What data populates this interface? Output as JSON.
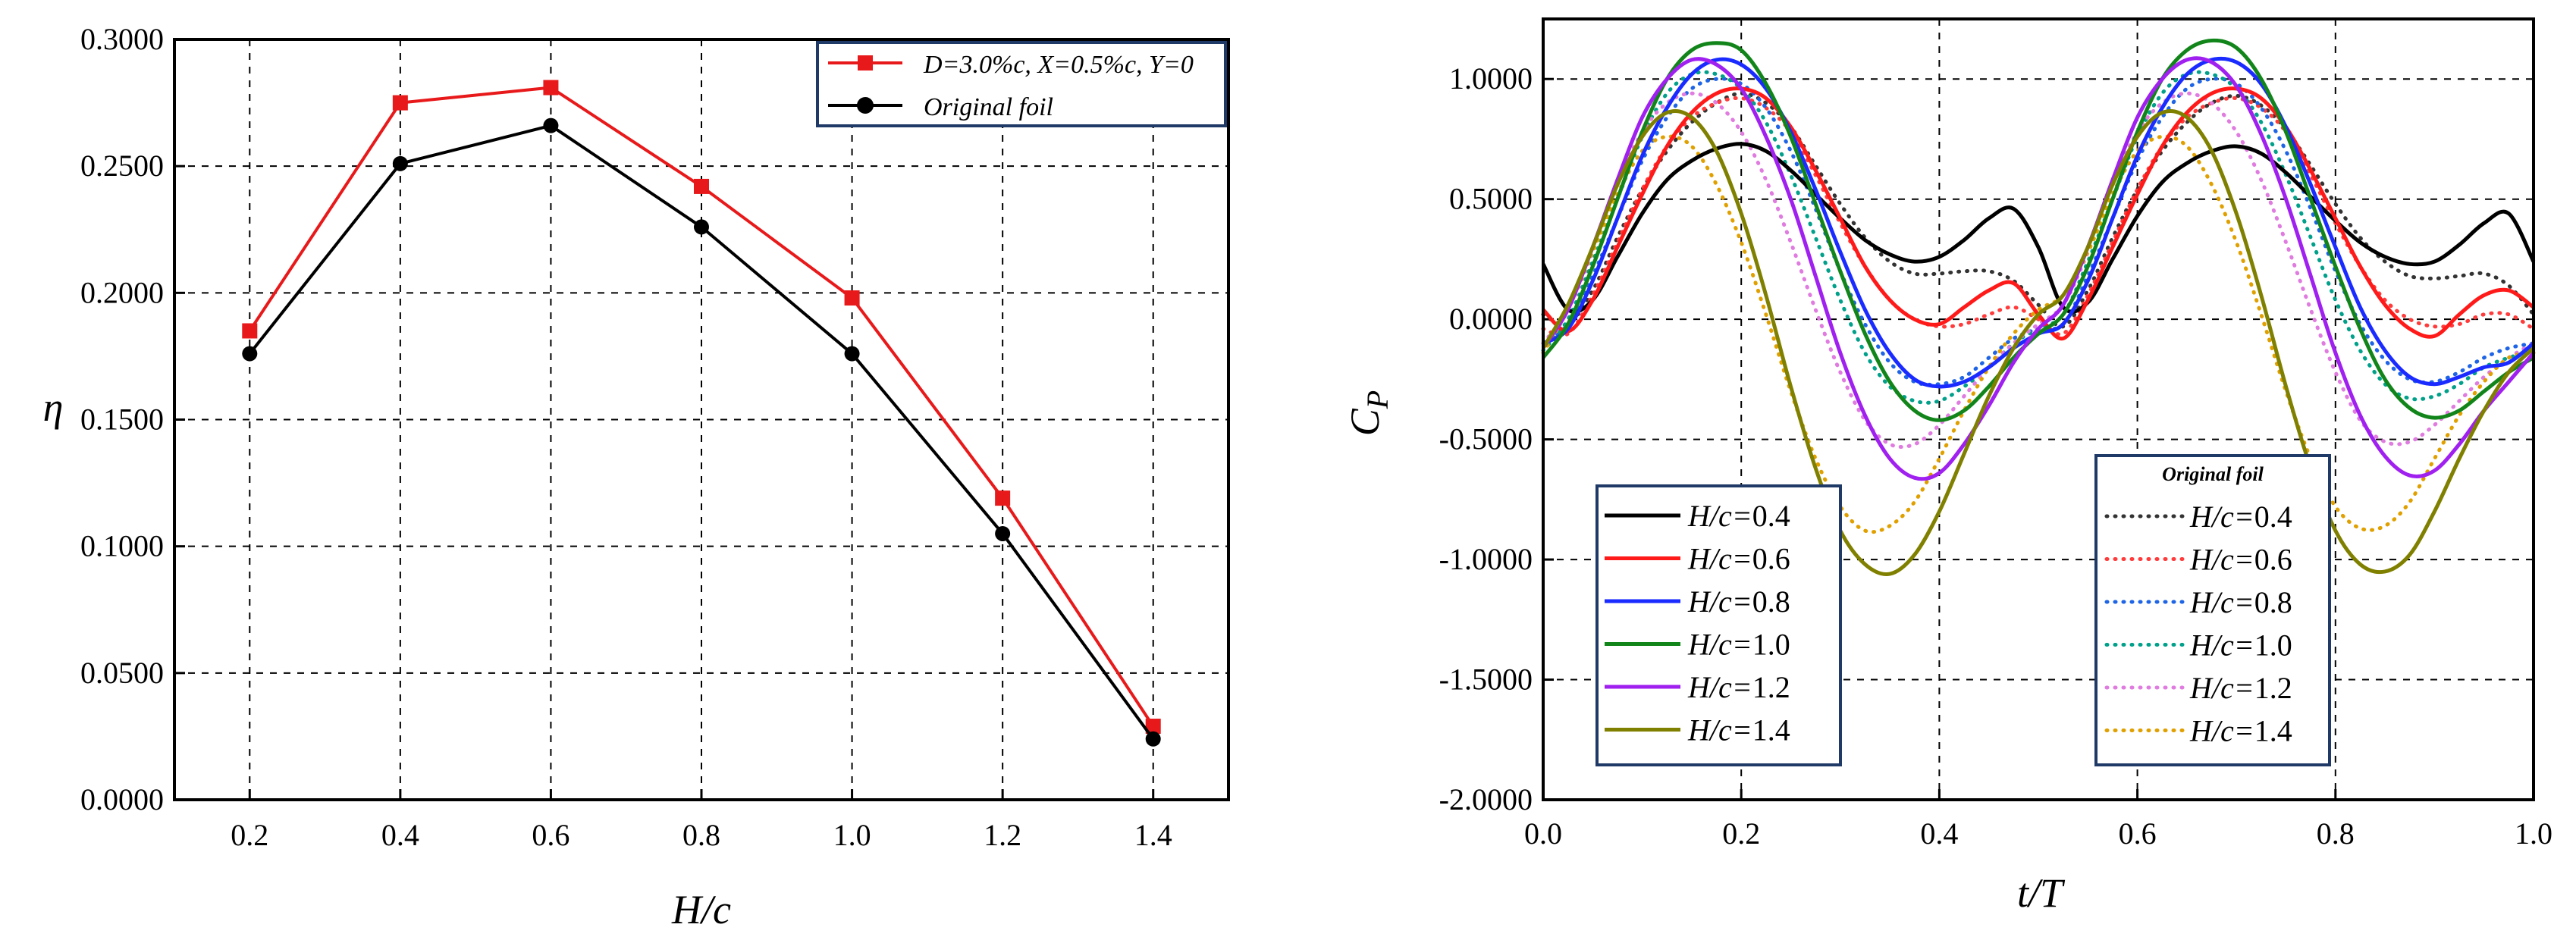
{
  "chart_data": [
    {
      "type": "line",
      "title": "",
      "xlabel": "H/c",
      "ylabel": "η",
      "xlim": [
        0.1,
        1.5
      ],
      "ylim": [
        0.0,
        0.3
      ],
      "xticks": [
        "0.2",
        "0.4",
        "0.6",
        "0.8",
        "1.0",
        "1.2",
        "1.4"
      ],
      "yticks": [
        "0.0000",
        "0.0500",
        "0.1000",
        "0.1500",
        "0.2000",
        "0.2500",
        "0.3000"
      ],
      "legend_position": "top-right",
      "grid": true,
      "x": [
        0.2,
        0.4,
        0.6,
        0.8,
        1.0,
        1.2,
        1.4
      ],
      "series": [
        {
          "name": "D=3.0%c, X=0.5%c, Y=0",
          "color": "#e8191a",
          "marker": "square",
          "values": [
            0.185,
            0.275,
            0.281,
            0.242,
            0.198,
            0.119,
            0.029
          ]
        },
        {
          "name": "Original foil",
          "color": "#000000",
          "marker": "circle",
          "values": [
            0.176,
            0.251,
            0.266,
            0.226,
            0.176,
            0.105,
            0.024
          ]
        }
      ]
    },
    {
      "type": "line",
      "title": "",
      "xlabel": "t/T",
      "ylabel": "C_P",
      "ylabel_main": "C",
      "ylabel_sub": "P",
      "xlim": [
        0.0,
        1.0
      ],
      "ylim": [
        -2.0,
        1.25
      ],
      "xticks": [
        "0.0",
        "0.2",
        "0.4",
        "0.6",
        "0.8",
        "1.0"
      ],
      "yticks": [
        "-2.0000",
        "-1.5000",
        "-1.0000",
        "-0.5000",
        "0.0000",
        "0.5000",
        "1.0000"
      ],
      "grid": true,
      "legend_left_position": "bottom-left",
      "legend_right_position": "bottom-right",
      "legend_right_title": "Original foil",
      "label_prefix": "H/c=",
      "x": [
        0.0,
        0.025,
        0.05,
        0.075,
        0.1,
        0.125,
        0.15,
        0.175,
        0.2,
        0.225,
        0.25,
        0.275,
        0.3,
        0.325,
        0.35,
        0.375,
        0.4,
        0.425,
        0.45,
        0.475,
        0.5,
        0.525,
        0.55,
        0.575,
        0.6,
        0.625,
        0.65,
        0.675,
        0.7,
        0.725,
        0.75,
        0.775,
        0.8,
        0.825,
        0.85,
        0.875,
        0.9,
        0.925,
        0.95,
        0.975,
        1.0
      ],
      "series": [
        {
          "name": "H/c=0.4",
          "hc": "0.4",
          "color": "#000000",
          "dashed": false,
          "values": [
            0.23,
            0.04,
            0.08,
            0.26,
            0.44,
            0.58,
            0.66,
            0.71,
            0.73,
            0.7,
            0.62,
            0.52,
            0.42,
            0.33,
            0.27,
            0.24,
            0.26,
            0.33,
            0.42,
            0.46,
            0.3,
            0.05,
            0.07,
            0.25,
            0.43,
            0.57,
            0.65,
            0.7,
            0.72,
            0.69,
            0.61,
            0.51,
            0.41,
            0.32,
            0.26,
            0.23,
            0.24,
            0.31,
            0.4,
            0.44,
            0.24
          ]
        },
        {
          "name": "H/c=0.6",
          "hc": "0.6",
          "color": "#ff1a1a",
          "dashed": false,
          "values": [
            0.04,
            -0.05,
            0.08,
            0.3,
            0.52,
            0.72,
            0.86,
            0.94,
            0.96,
            0.92,
            0.8,
            0.62,
            0.42,
            0.22,
            0.08,
            0.0,
            -0.02,
            0.05,
            0.12,
            0.15,
            0.02,
            -0.08,
            0.08,
            0.3,
            0.52,
            0.72,
            0.86,
            0.94,
            0.96,
            0.92,
            0.8,
            0.62,
            0.42,
            0.22,
            0.06,
            -0.04,
            -0.07,
            0.02,
            0.1,
            0.12,
            0.05
          ]
        },
        {
          "name": "H/c=0.8",
          "hc": "0.8",
          "color": "#1a2bff",
          "dashed": false,
          "values": [
            -0.1,
            -0.04,
            0.16,
            0.42,
            0.68,
            0.88,
            1.02,
            1.08,
            1.06,
            0.96,
            0.78,
            0.54,
            0.28,
            0.04,
            -0.14,
            -0.25,
            -0.28,
            -0.26,
            -0.2,
            -0.12,
            -0.06,
            -0.02,
            0.16,
            0.42,
            0.68,
            0.88,
            1.02,
            1.08,
            1.07,
            0.98,
            0.8,
            0.56,
            0.3,
            0.05,
            -0.13,
            -0.24,
            -0.27,
            -0.24,
            -0.2,
            -0.18,
            -0.1
          ]
        },
        {
          "name": "H/c=1.0",
          "hc": "1.0",
          "color": "#12851a",
          "dashed": false,
          "values": [
            -0.16,
            -0.02,
            0.22,
            0.5,
            0.78,
            1.0,
            1.12,
            1.15,
            1.12,
            0.98,
            0.76,
            0.48,
            0.2,
            -0.06,
            -0.26,
            -0.38,
            -0.42,
            -0.38,
            -0.28,
            -0.16,
            -0.06,
            0.02,
            0.22,
            0.5,
            0.78,
            1.0,
            1.12,
            1.16,
            1.13,
            1.0,
            0.78,
            0.5,
            0.22,
            -0.04,
            -0.25,
            -0.37,
            -0.41,
            -0.38,
            -0.3,
            -0.22,
            -0.16
          ]
        },
        {
          "name": "H/c=1.2",
          "hc": "1.2",
          "color": "#a020f0",
          "dashed": false,
          "values": [
            -0.12,
            0.04,
            0.3,
            0.58,
            0.84,
            1.0,
            1.08,
            1.06,
            0.96,
            0.76,
            0.5,
            0.18,
            -0.14,
            -0.4,
            -0.58,
            -0.66,
            -0.64,
            -0.52,
            -0.36,
            -0.18,
            -0.04,
            0.06,
            0.3,
            0.58,
            0.84,
            1.0,
            1.08,
            1.07,
            0.97,
            0.77,
            0.5,
            0.18,
            -0.14,
            -0.4,
            -0.57,
            -0.65,
            -0.63,
            -0.52,
            -0.38,
            -0.26,
            -0.14
          ]
        },
        {
          "name": "H/c=1.4",
          "hc": "1.4",
          "color": "#808000",
          "dashed": false,
          "values": [
            -0.12,
            0.06,
            0.3,
            0.56,
            0.76,
            0.86,
            0.84,
            0.7,
            0.44,
            0.1,
            -0.28,
            -0.62,
            -0.88,
            -1.02,
            -1.06,
            -0.98,
            -0.8,
            -0.56,
            -0.32,
            -0.12,
            0.02,
            0.1,
            0.3,
            0.56,
            0.76,
            0.86,
            0.84,
            0.7,
            0.44,
            0.1,
            -0.28,
            -0.62,
            -0.88,
            -1.02,
            -1.05,
            -0.98,
            -0.8,
            -0.58,
            -0.38,
            -0.22,
            -0.12
          ]
        },
        {
          "name": "H/c=0.4",
          "hc": "0.4",
          "color": "#333333",
          "dashed": true,
          "values": [
            0.02,
            -0.02,
            0.12,
            0.34,
            0.54,
            0.7,
            0.82,
            0.9,
            0.94,
            0.9,
            0.8,
            0.64,
            0.48,
            0.34,
            0.24,
            0.19,
            0.19,
            0.2,
            0.2,
            0.16,
            0.06,
            -0.03,
            0.12,
            0.34,
            0.54,
            0.7,
            0.82,
            0.9,
            0.93,
            0.89,
            0.79,
            0.64,
            0.48,
            0.34,
            0.24,
            0.18,
            0.17,
            0.18,
            0.19,
            0.14,
            0.02
          ]
        },
        {
          "name": "H/c=0.6",
          "hc": "0.6",
          "color": "#ff3b3b",
          "dashed": true,
          "values": [
            -0.04,
            -0.06,
            0.1,
            0.32,
            0.54,
            0.72,
            0.84,
            0.9,
            0.92,
            0.88,
            0.78,
            0.6,
            0.4,
            0.22,
            0.08,
            0.0,
            -0.03,
            -0.02,
            0.02,
            0.05,
            0.0,
            -0.06,
            0.1,
            0.32,
            0.54,
            0.72,
            0.84,
            0.9,
            0.92,
            0.88,
            0.78,
            0.6,
            0.4,
            0.22,
            0.08,
            0.0,
            -0.03,
            -0.02,
            0.02,
            0.02,
            -0.04
          ]
        },
        {
          "name": "H/c=0.8",
          "hc": "0.8",
          "color": "#1e64e6",
          "dashed": true,
          "values": [
            -0.1,
            -0.02,
            0.18,
            0.42,
            0.66,
            0.84,
            0.96,
            1.0,
            0.98,
            0.88,
            0.7,
            0.46,
            0.2,
            -0.02,
            -0.18,
            -0.26,
            -0.27,
            -0.24,
            -0.16,
            -0.08,
            -0.04,
            -0.02,
            0.18,
            0.42,
            0.66,
            0.84,
            0.96,
            1.0,
            0.98,
            0.88,
            0.7,
            0.46,
            0.2,
            -0.02,
            -0.17,
            -0.25,
            -0.26,
            -0.22,
            -0.16,
            -0.12,
            -0.1
          ]
        },
        {
          "name": "H/c=1.0",
          "hc": "1.0",
          "color": "#00a08a",
          "dashed": true,
          "values": [
            -0.13,
            0.0,
            0.24,
            0.5,
            0.76,
            0.94,
            1.02,
            1.02,
            0.96,
            0.82,
            0.6,
            0.34,
            0.08,
            -0.14,
            -0.28,
            -0.34,
            -0.34,
            -0.28,
            -0.2,
            -0.1,
            -0.04,
            0.02,
            0.24,
            0.5,
            0.76,
            0.94,
            1.02,
            1.02,
            0.96,
            0.82,
            0.6,
            0.34,
            0.08,
            -0.13,
            -0.27,
            -0.33,
            -0.32,
            -0.27,
            -0.2,
            -0.16,
            -0.13
          ]
        },
        {
          "name": "H/c=1.2",
          "hc": "1.2",
          "color": "#e07be0",
          "dashed": true,
          "values": [
            -0.1,
            0.04,
            0.28,
            0.56,
            0.78,
            0.9,
            0.94,
            0.9,
            0.78,
            0.58,
            0.32,
            0.04,
            -0.22,
            -0.42,
            -0.52,
            -0.52,
            -0.44,
            -0.32,
            -0.2,
            -0.1,
            -0.02,
            0.06,
            0.28,
            0.56,
            0.78,
            0.9,
            0.94,
            0.9,
            0.78,
            0.58,
            0.32,
            0.04,
            -0.22,
            -0.42,
            -0.51,
            -0.51,
            -0.44,
            -0.34,
            -0.24,
            -0.16,
            -0.1
          ]
        },
        {
          "name": "H/c=1.4",
          "hc": "1.4",
          "color": "#e0a000",
          "dashed": true,
          "values": [
            -0.14,
            0.04,
            0.28,
            0.52,
            0.7,
            0.76,
            0.72,
            0.56,
            0.32,
            0.02,
            -0.3,
            -0.58,
            -0.78,
            -0.88,
            -0.86,
            -0.76,
            -0.58,
            -0.38,
            -0.2,
            -0.06,
            0.04,
            0.1,
            0.28,
            0.52,
            0.7,
            0.76,
            0.72,
            0.56,
            0.32,
            0.02,
            -0.3,
            -0.58,
            -0.78,
            -0.87,
            -0.86,
            -0.76,
            -0.58,
            -0.4,
            -0.26,
            -0.16,
            -0.14
          ]
        }
      ]
    }
  ]
}
